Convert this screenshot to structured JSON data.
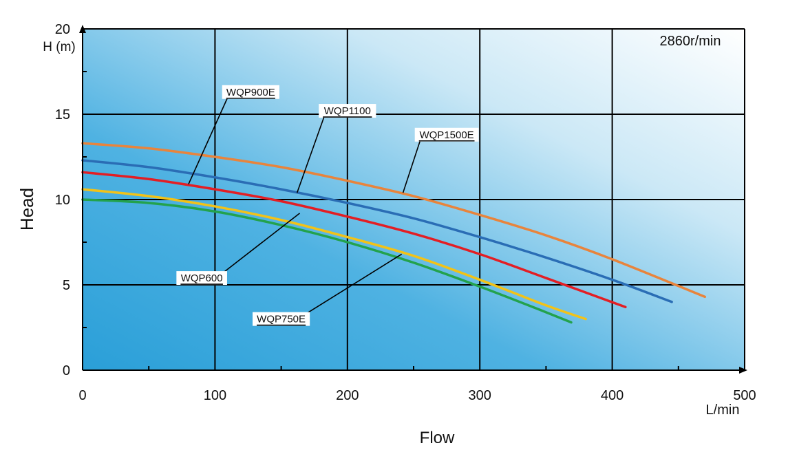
{
  "chart_data": {
    "type": "line",
    "x_axis": {
      "title": "Flow",
      "unit": "L/min",
      "range": [
        0,
        500
      ],
      "major_ticks": [
        0,
        100,
        200,
        300,
        400,
        500
      ],
      "minor_step": 50
    },
    "y_axis": {
      "title": "Head",
      "unit": "H (m)",
      "range": [
        0,
        20
      ],
      "major_ticks": [
        0,
        5,
        10,
        15,
        20
      ]
    },
    "speed_annotation": "2860r/min",
    "grid": true,
    "background": {
      "gradient_from": "#2a9fd8",
      "gradient_to": "#ffffff"
    },
    "series": [
      {
        "name": "WQP1500E",
        "color": "#e8843c",
        "x": [
          0,
          50,
          100,
          150,
          200,
          250,
          300,
          350,
          400,
          470
        ],
        "y": [
          13.3,
          13.0,
          12.5,
          11.9,
          11.1,
          10.2,
          9.1,
          7.9,
          6.5,
          4.3
        ]
      },
      {
        "name": "WQP1100",
        "color": "#2a6db5",
        "x": [
          0,
          50,
          100,
          150,
          200,
          250,
          300,
          350,
          400,
          445
        ],
        "y": [
          12.3,
          11.9,
          11.3,
          10.6,
          9.8,
          8.9,
          7.8,
          6.6,
          5.3,
          4.0
        ]
      },
      {
        "name": "WQP900E",
        "color": "#e31e24",
        "x": [
          0,
          50,
          100,
          150,
          200,
          250,
          300,
          350,
          410
        ],
        "y": [
          11.6,
          11.2,
          10.6,
          9.9,
          9.0,
          8.0,
          6.8,
          5.4,
          3.7
        ]
      },
      {
        "name": "WQP600",
        "color": "#f2c218",
        "x": [
          0,
          50,
          100,
          150,
          200,
          250,
          300,
          350,
          380
        ],
        "y": [
          10.6,
          10.2,
          9.6,
          8.8,
          7.8,
          6.7,
          5.3,
          3.8,
          3.0
        ]
      },
      {
        "name": "WQP750E",
        "color": "#23a24d",
        "x": [
          0,
          50,
          100,
          150,
          200,
          250,
          300,
          340,
          369
        ],
        "y": [
          10.0,
          9.8,
          9.3,
          8.5,
          7.5,
          6.3,
          4.9,
          3.7,
          2.8
        ]
      }
    ],
    "labels": [
      {
        "text": "WQP900E",
        "series": "WQP900E",
        "anchor": [
          80,
          10.9
        ],
        "at": [
          127,
          16.3
        ]
      },
      {
        "text": "WQP1100",
        "series": "WQP1100",
        "anchor": [
          162,
          10.4
        ],
        "at": [
          200,
          15.2
        ]
      },
      {
        "text": "WQP1500E",
        "series": "WQP1500E",
        "anchor": [
          242,
          10.4
        ],
        "at": [
          275,
          13.8
        ]
      },
      {
        "text": "WQP600",
        "series": "WQP600",
        "anchor": [
          164,
          9.2
        ],
        "at": [
          90,
          5.4
        ]
      },
      {
        "text": "WQP750E",
        "series": "WQP750E",
        "anchor": [
          241,
          6.8
        ],
        "at": [
          150,
          3.0
        ]
      }
    ]
  }
}
